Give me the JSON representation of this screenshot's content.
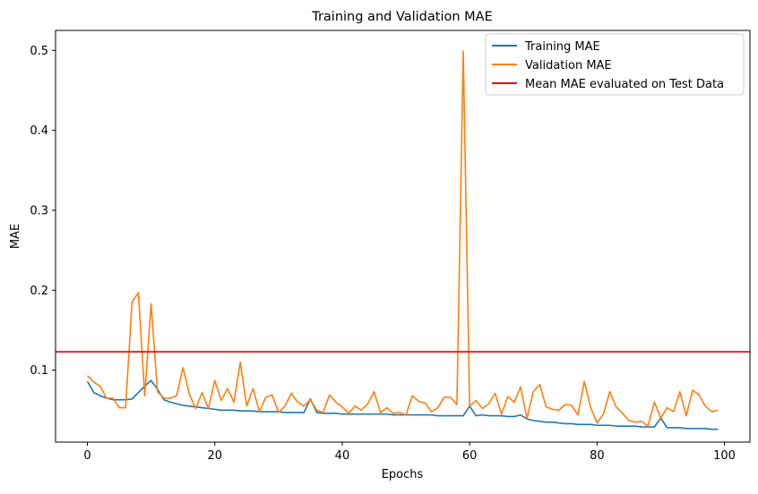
{
  "chart_data": {
    "type": "line",
    "title": "Training and Validation MAE",
    "xlabel": "Epochs",
    "ylabel": "MAE",
    "xlim": [
      -5,
      104
    ],
    "ylim": [
      0.01,
      0.525
    ],
    "xticks": [
      0,
      20,
      40,
      60,
      80,
      100
    ],
    "xtick_labels": [
      "0",
      "20",
      "40",
      "60",
      "80",
      "100"
    ],
    "yticks": [
      0.1,
      0.2,
      0.3,
      0.4,
      0.5
    ],
    "ytick_labels": [
      "0.1",
      "0.2",
      "0.3",
      "0.4",
      "0.5"
    ],
    "grid": false,
    "legend_position": "top-right",
    "series": [
      {
        "name": "Training MAE",
        "color": "#1f77b4",
        "x": [
          0,
          1,
          2,
          3,
          4,
          5,
          6,
          7,
          8,
          9,
          10,
          11,
          12,
          13,
          14,
          15,
          16,
          17,
          18,
          19,
          20,
          21,
          22,
          23,
          24,
          25,
          26,
          27,
          28,
          29,
          30,
          31,
          32,
          33,
          34,
          35,
          36,
          37,
          38,
          39,
          40,
          41,
          42,
          43,
          44,
          45,
          46,
          47,
          48,
          49,
          50,
          51,
          52,
          53,
          54,
          55,
          56,
          57,
          58,
          59,
          60,
          61,
          62,
          63,
          64,
          65,
          66,
          67,
          68,
          69,
          70,
          71,
          72,
          73,
          74,
          75,
          76,
          77,
          78,
          79,
          80,
          81,
          82,
          83,
          84,
          85,
          86,
          87,
          88,
          89,
          90,
          91,
          92,
          93,
          94,
          95,
          96,
          97,
          98,
          99
        ],
        "values": [
          0.086,
          0.072,
          0.068,
          0.065,
          0.063,
          0.063,
          0.063,
          0.064,
          0.072,
          0.08,
          0.087,
          0.076,
          0.063,
          0.06,
          0.058,
          0.056,
          0.055,
          0.054,
          0.053,
          0.052,
          0.051,
          0.05,
          0.05,
          0.05,
          0.049,
          0.049,
          0.049,
          0.048,
          0.048,
          0.048,
          0.048,
          0.047,
          0.047,
          0.047,
          0.047,
          0.064,
          0.047,
          0.046,
          0.046,
          0.046,
          0.045,
          0.045,
          0.045,
          0.045,
          0.045,
          0.045,
          0.045,
          0.045,
          0.044,
          0.044,
          0.044,
          0.044,
          0.044,
          0.044,
          0.044,
          0.043,
          0.043,
          0.043,
          0.043,
          0.043,
          0.055,
          0.043,
          0.044,
          0.043,
          0.043,
          0.043,
          0.042,
          0.042,
          0.044,
          0.039,
          0.037,
          0.036,
          0.035,
          0.035,
          0.034,
          0.033,
          0.033,
          0.032,
          0.032,
          0.032,
          0.031,
          0.031,
          0.031,
          0.03,
          0.03,
          0.03,
          0.03,
          0.029,
          0.029,
          0.029,
          0.04,
          0.028,
          0.028,
          0.028,
          0.027,
          0.027,
          0.027,
          0.027,
          0.026,
          0.026
        ]
      },
      {
        "name": "Validation MAE",
        "color": "#ff7f0e",
        "x": [
          0,
          1,
          2,
          3,
          4,
          5,
          6,
          7,
          8,
          9,
          10,
          11,
          12,
          13,
          14,
          15,
          16,
          17,
          18,
          19,
          20,
          21,
          22,
          23,
          24,
          25,
          26,
          27,
          28,
          29,
          30,
          31,
          32,
          33,
          34,
          35,
          36,
          37,
          38,
          39,
          40,
          41,
          42,
          43,
          44,
          45,
          46,
          47,
          48,
          49,
          50,
          51,
          52,
          53,
          54,
          55,
          56,
          57,
          58,
          59,
          60,
          61,
          62,
          63,
          64,
          65,
          66,
          67,
          68,
          69,
          70,
          71,
          72,
          73,
          74,
          75,
          76,
          77,
          78,
          79,
          80,
          81,
          82,
          83,
          84,
          85,
          86,
          87,
          88,
          89,
          90,
          91,
          92,
          93,
          94,
          95,
          96,
          97,
          98,
          99
        ],
        "values": [
          0.093,
          0.085,
          0.08,
          0.065,
          0.065,
          0.053,
          0.053,
          0.185,
          0.197,
          0.068,
          0.183,
          0.073,
          0.065,
          0.065,
          0.068,
          0.103,
          0.07,
          0.052,
          0.072,
          0.052,
          0.087,
          0.062,
          0.077,
          0.06,
          0.11,
          0.055,
          0.077,
          0.048,
          0.066,
          0.069,
          0.047,
          0.055,
          0.071,
          0.06,
          0.055,
          0.063,
          0.05,
          0.047,
          0.069,
          0.06,
          0.054,
          0.046,
          0.055,
          0.05,
          0.058,
          0.073,
          0.047,
          0.053,
          0.046,
          0.047,
          0.044,
          0.068,
          0.061,
          0.059,
          0.048,
          0.053,
          0.066,
          0.066,
          0.057,
          0.499,
          0.055,
          0.062,
          0.052,
          0.058,
          0.071,
          0.045,
          0.067,
          0.06,
          0.079,
          0.04,
          0.073,
          0.082,
          0.054,
          0.051,
          0.05,
          0.057,
          0.056,
          0.044,
          0.086,
          0.053,
          0.034,
          0.045,
          0.073,
          0.054,
          0.046,
          0.037,
          0.035,
          0.036,
          0.03,
          0.06,
          0.04,
          0.053,
          0.048,
          0.073,
          0.043,
          0.075,
          0.069,
          0.055,
          0.048,
          0.05
        ]
      },
      {
        "name": "Mean MAE evaluated on Test Data",
        "color": "#e50000",
        "horizontal_line": true,
        "value": 0.123
      }
    ]
  }
}
